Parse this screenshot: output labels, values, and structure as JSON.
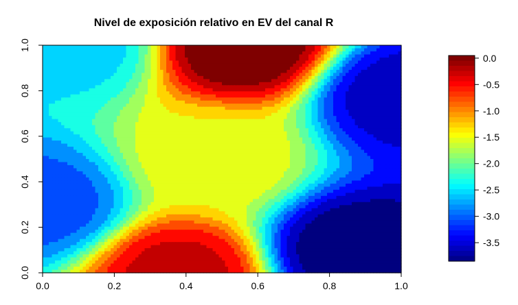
{
  "chart_data": {
    "type": "heatmap",
    "title": "Nivel de exposición relativo en EV del canal R",
    "xlabel": "",
    "ylabel": "",
    "xlim": [
      0.0,
      1.0
    ],
    "ylim": [
      0.0,
      1.0
    ],
    "x_ticks": [
      "0.0",
      "0.2",
      "0.4",
      "0.6",
      "0.8",
      "1.0"
    ],
    "y_ticks": [
      "0.0",
      "0.2",
      "0.4",
      "0.6",
      "0.8",
      "1.0"
    ],
    "grid": false,
    "legend": {
      "type": "colorbar",
      "placement": "right",
      "range": [
        -3.85,
        0.05
      ],
      "ticks": [
        "0.0",
        "-0.5",
        "-1.0",
        "-1.5",
        "-2.0",
        "-2.5",
        "-3.0",
        "-3.5"
      ]
    },
    "colormap": [
      "#00007F",
      "#0000FF",
      "#007FFF",
      "#00FFFF",
      "#7FFF7F",
      "#FFFF00",
      "#FF7F00",
      "#FF0000",
      "#7F0000"
    ],
    "value_range": [
      -3.85,
      0.0
    ],
    "features": [
      {
        "x": 0.56,
        "y": 1.0,
        "value": 0.0
      },
      {
        "x": 0.38,
        "y": 0.0,
        "value": -0.4
      },
      {
        "x": 0.48,
        "y": 0.5,
        "value": -1.5
      },
      {
        "x": 0.0,
        "y": 0.3,
        "value": -3.0
      },
      {
        "x": 0.09,
        "y": 1.0,
        "value": -2.5
      },
      {
        "x": 0.87,
        "y": 0.1,
        "value": -3.8
      },
      {
        "x": 1.0,
        "y": 0.78,
        "value": -3.5
      }
    ]
  }
}
